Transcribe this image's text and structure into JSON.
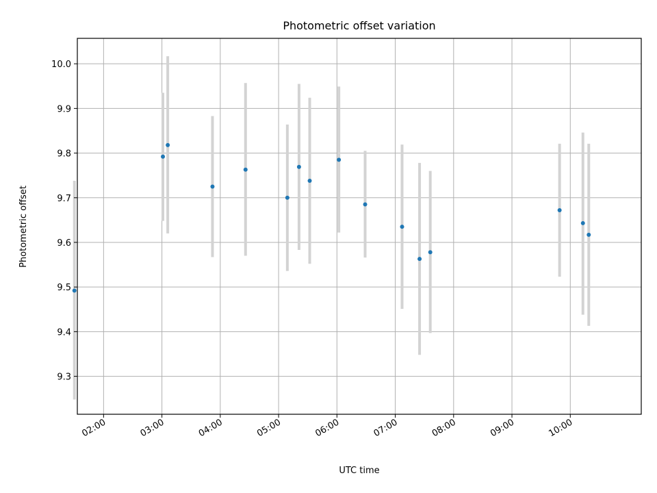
{
  "chart_data": {
    "type": "scatter",
    "title": "Photometric offset variation",
    "xlabel": "UTC time",
    "ylabel": "Photometric offset",
    "x_tick_labels": [
      "02:00",
      "03:00",
      "04:00",
      "05:00",
      "06:00",
      "07:00",
      "08:00",
      "09:00",
      "10:00"
    ],
    "x_ticks": [
      "02:00",
      "03:00",
      "04:00",
      "05:00",
      "06:00",
      "07:00",
      "08:00",
      "09:00",
      "10:00"
    ],
    "xlim": [
      "01:33",
      "11:13"
    ],
    "y_ticks": [
      9.3,
      9.4,
      9.5,
      9.6,
      9.7,
      9.8,
      9.9,
      10.0
    ],
    "y_tick_labels": [
      "9.3",
      "9.4",
      "9.5",
      "9.6",
      "9.7",
      "9.8",
      "9.9",
      "10.0"
    ],
    "ylim": [
      9.215,
      10.057
    ],
    "grid": true,
    "colors": {
      "point": "#1f77b4",
      "errorbar": "#d3d3d3",
      "grid": "#b0b0b0"
    },
    "points": [
      {
        "time": "01:30",
        "y": 9.492,
        "yerr_low": 9.248,
        "yerr_high": 9.738
      },
      {
        "time": "03:01",
        "y": 9.792,
        "yerr_low": 9.648,
        "yerr_high": 9.935
      },
      {
        "time": "03:06",
        "y": 9.818,
        "yerr_low": 9.62,
        "yerr_high": 10.017
      },
      {
        "time": "03:52",
        "y": 9.725,
        "yerr_low": 9.567,
        "yerr_high": 9.883
      },
      {
        "time": "04:26",
        "y": 9.763,
        "yerr_low": 9.57,
        "yerr_high": 9.957
      },
      {
        "time": "05:09",
        "y": 9.7,
        "yerr_low": 9.536,
        "yerr_high": 9.864
      },
      {
        "time": "05:21",
        "y": 9.769,
        "yerr_low": 9.583,
        "yerr_high": 9.955
      },
      {
        "time": "05:32",
        "y": 9.738,
        "yerr_low": 9.552,
        "yerr_high": 9.924
      },
      {
        "time": "06:02",
        "y": 9.785,
        "yerr_low": 9.622,
        "yerr_high": 9.949
      },
      {
        "time": "06:29",
        "y": 9.685,
        "yerr_low": 9.566,
        "yerr_high": 9.805
      },
      {
        "time": "07:07",
        "y": 9.635,
        "yerr_low": 9.451,
        "yerr_high": 9.819
      },
      {
        "time": "07:25",
        "y": 9.563,
        "yerr_low": 9.348,
        "yerr_high": 9.778
      },
      {
        "time": "07:36",
        "y": 9.578,
        "yerr_low": 9.397,
        "yerr_high": 9.76
      },
      {
        "time": "09:49",
        "y": 9.672,
        "yerr_low": 9.523,
        "yerr_high": 9.821
      },
      {
        "time": "10:13",
        "y": 9.643,
        "yerr_low": 9.438,
        "yerr_high": 9.846
      },
      {
        "time": "10:19",
        "y": 9.617,
        "yerr_low": 9.413,
        "yerr_high": 9.821
      }
    ]
  }
}
